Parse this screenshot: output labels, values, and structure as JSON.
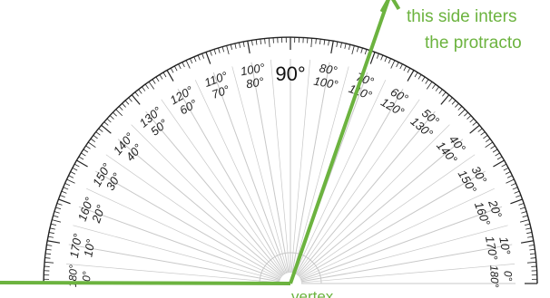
{
  "colors": {
    "accent": "#6cb33f",
    "scale": "#222222",
    "ray": "#c8c8c8",
    "background": "#ffffff"
  },
  "protractor": {
    "center_label": "90°",
    "angle_pairs": [
      {
        "deg": 10,
        "outer": "10°",
        "inner": "170°"
      },
      {
        "deg": 20,
        "outer": "20°",
        "inner": "160°"
      },
      {
        "deg": 30,
        "outer": "30°",
        "inner": "150°"
      },
      {
        "deg": 40,
        "outer": "40°",
        "inner": "140°"
      },
      {
        "deg": 50,
        "outer": "50°",
        "inner": "130°"
      },
      {
        "deg": 60,
        "outer": "60°",
        "inner": "120°"
      },
      {
        "deg": 70,
        "outer": "70°",
        "inner": "110°"
      },
      {
        "deg": 80,
        "outer": "80°",
        "inner": "100°"
      },
      {
        "deg": 100,
        "outer": "100°",
        "inner": "80°"
      },
      {
        "deg": 110,
        "outer": "110°",
        "inner": "70°"
      },
      {
        "deg": 120,
        "outer": "120°",
        "inner": "60°"
      },
      {
        "deg": 130,
        "outer": "130°",
        "inner": "50°"
      },
      {
        "deg": 140,
        "outer": "140°",
        "inner": "40°"
      },
      {
        "deg": 150,
        "outer": "150°",
        "inner": "30°"
      },
      {
        "deg": 160,
        "outer": "160°",
        "inner": "20°"
      },
      {
        "deg": 170,
        "outer": "170°",
        "inner": "10°"
      }
    ],
    "edge_left": {
      "outer": "180°",
      "inner": "0°"
    },
    "edge_right": {
      "outer": "0°",
      "inner": "180°"
    }
  },
  "annotations": {
    "arrow_note_line1": "this side inters",
    "arrow_note_line2": "the protracto",
    "vertex_label": "vertex"
  },
  "angle": {
    "measured_ray_deg": 71
  }
}
